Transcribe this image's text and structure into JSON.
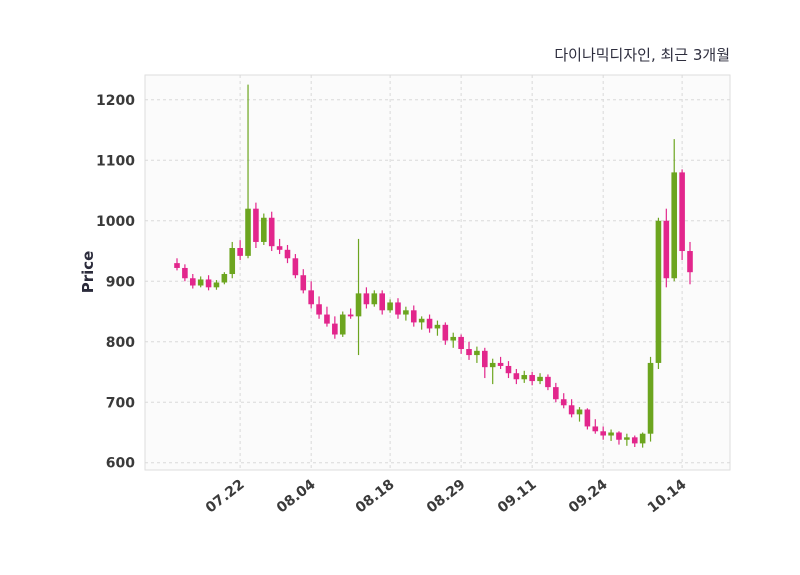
{
  "chart": {
    "title": "다이나믹디자인, 최근 3개월",
    "ylabel": "Price"
  },
  "chart_data": {
    "type": "candlestick",
    "title": "다이나믹디자인, 최근 3개월",
    "ylabel": "Price",
    "xlabel": "",
    "grid": "dashed",
    "y_ticks": [
      600,
      700,
      800,
      900,
      1000,
      1100,
      1200
    ],
    "ylim": [
      588,
      1241
    ],
    "up_color": "#6CA51F",
    "down_color": "#E2268C",
    "grid_color": "#d9d9d9",
    "plot_bg": "#fbfbfb",
    "plot_border": "#dedede",
    "x_ticks": [
      {
        "i": 8,
        "label": "07.22"
      },
      {
        "i": 17,
        "label": "08.04"
      },
      {
        "i": 27,
        "label": "08.18"
      },
      {
        "i": 36,
        "label": "08.29"
      },
      {
        "i": 45,
        "label": "09.11"
      },
      {
        "i": 54,
        "label": "09.24"
      },
      {
        "i": 64,
        "label": "10.14"
      }
    ],
    "candle_format": [
      "open",
      "high",
      "low",
      "close"
    ],
    "candles": [
      [
        930,
        938,
        918,
        922
      ],
      [
        922,
        928,
        900,
        905
      ],
      [
        905,
        912,
        888,
        893
      ],
      [
        893,
        908,
        890,
        903
      ],
      [
        903,
        910,
        885,
        890
      ],
      [
        890,
        902,
        886,
        898
      ],
      [
        898,
        915,
        895,
        912
      ],
      [
        912,
        965,
        905,
        955
      ],
      [
        955,
        968,
        935,
        942
      ],
      [
        942,
        1225,
        938,
        1020
      ],
      [
        1020,
        1030,
        955,
        965
      ],
      [
        965,
        1012,
        960,
        1005
      ],
      [
        1005,
        1015,
        950,
        958
      ],
      [
        958,
        970,
        945,
        952
      ],
      [
        952,
        960,
        930,
        938
      ],
      [
        938,
        945,
        905,
        910
      ],
      [
        910,
        920,
        880,
        885
      ],
      [
        885,
        900,
        855,
        862
      ],
      [
        862,
        875,
        838,
        845
      ],
      [
        845,
        858,
        825,
        830
      ],
      [
        830,
        842,
        805,
        812
      ],
      [
        812,
        850,
        808,
        845
      ],
      [
        845,
        855,
        838,
        842
      ],
      [
        842,
        970,
        778,
        880
      ],
      [
        880,
        890,
        855,
        862
      ],
      [
        862,
        885,
        858,
        880
      ],
      [
        880,
        885,
        845,
        852
      ],
      [
        852,
        870,
        848,
        865
      ],
      [
        865,
        872,
        838,
        845
      ],
      [
        845,
        858,
        835,
        852
      ],
      [
        852,
        860,
        825,
        832
      ],
      [
        832,
        842,
        820,
        838
      ],
      [
        838,
        845,
        815,
        822
      ],
      [
        822,
        835,
        810,
        828
      ],
      [
        828,
        832,
        795,
        802
      ],
      [
        802,
        815,
        790,
        808
      ],
      [
        808,
        812,
        780,
        788
      ],
      [
        788,
        800,
        770,
        778
      ],
      [
        778,
        792,
        765,
        785
      ],
      [
        785,
        790,
        740,
        758
      ],
      [
        758,
        772,
        730,
        765
      ],
      [
        765,
        775,
        755,
        760
      ],
      [
        760,
        768,
        740,
        748
      ],
      [
        748,
        755,
        730,
        738
      ],
      [
        738,
        752,
        732,
        745
      ],
      [
        745,
        750,
        728,
        735
      ],
      [
        735,
        748,
        730,
        742
      ],
      [
        742,
        746,
        720,
        725
      ],
      [
        725,
        732,
        700,
        705
      ],
      [
        705,
        715,
        690,
        695
      ],
      [
        695,
        705,
        675,
        680
      ],
      [
        680,
        692,
        668,
        688
      ],
      [
        688,
        690,
        655,
        660
      ],
      [
        660,
        672,
        648,
        652
      ],
      [
        652,
        660,
        638,
        645
      ],
      [
        645,
        655,
        636,
        650
      ],
      [
        650,
        652,
        630,
        638
      ],
      [
        638,
        648,
        628,
        642
      ],
      [
        642,
        645,
        626,
        632
      ],
      [
        632,
        650,
        625,
        648
      ],
      [
        648,
        775,
        635,
        765
      ],
      [
        765,
        1005,
        755,
        1000
      ],
      [
        1000,
        1020,
        890,
        905
      ],
      [
        905,
        1135,
        900,
        1080
      ],
      [
        1080,
        1085,
        935,
        950
      ],
      [
        950,
        965,
        895,
        915
      ]
    ]
  }
}
